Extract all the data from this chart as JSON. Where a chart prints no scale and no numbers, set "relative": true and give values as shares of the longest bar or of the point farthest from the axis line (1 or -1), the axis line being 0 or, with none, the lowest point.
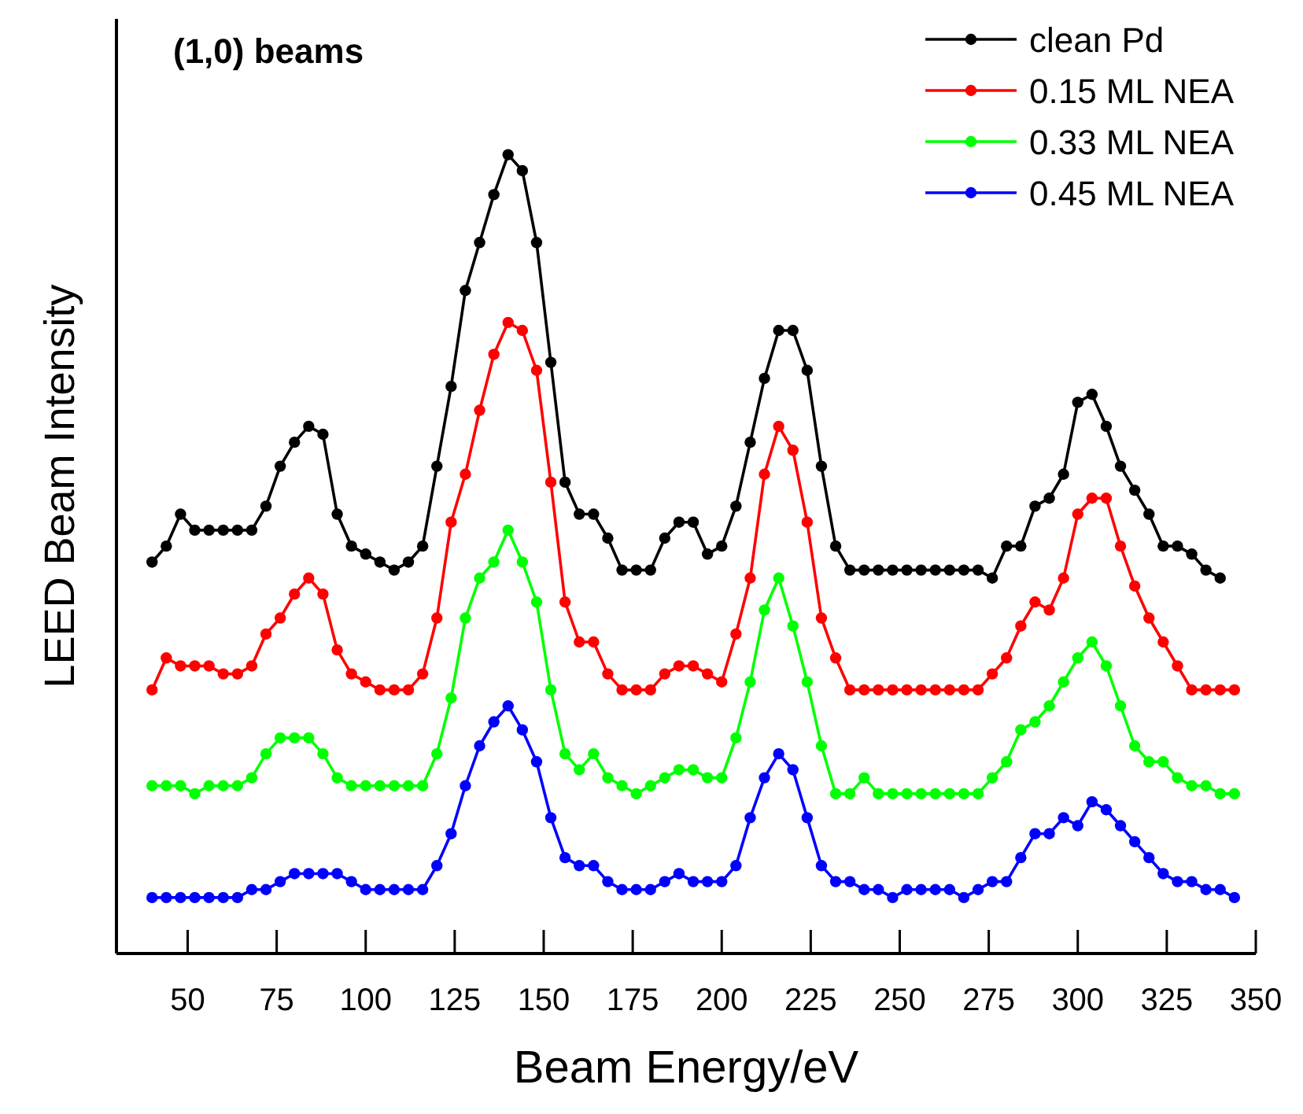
{
  "chart_data": {
    "type": "line",
    "title": "(1,0) beams",
    "xlabel": "Beam Energy/eV",
    "ylabel": "LEED Beam Intensity",
    "relative": true,
    "marker": "circle",
    "legend": "top right",
    "grid": false,
    "x": [
      40,
      44,
      48,
      52,
      56,
      60,
      64,
      68,
      72,
      76,
      80,
      84,
      88,
      92,
      96,
      100,
      104,
      108,
      112,
      116,
      120,
      124,
      128,
      132,
      136,
      140,
      144,
      148,
      152,
      156,
      160,
      164,
      168,
      172,
      176,
      180,
      184,
      188,
      192,
      196,
      200,
      204,
      208,
      212,
      216,
      220,
      224,
      228,
      232,
      236,
      240,
      244,
      248,
      252,
      256,
      260,
      264,
      268,
      272,
      276,
      280,
      284,
      288,
      292,
      296,
      300,
      304,
      308,
      312,
      316,
      320,
      324,
      328,
      332,
      336,
      340,
      344
    ],
    "xlim": [
      30,
      350
    ],
    "xticks": [
      50,
      75,
      100,
      125,
      150,
      175,
      200,
      225,
      250,
      275,
      300,
      325,
      350
    ],
    "series": [
      {
        "name": "clean Pd",
        "color": "#000000",
        "values": [
          0.49,
          0.51,
          0.55,
          0.53,
          0.53,
          0.53,
          0.53,
          0.53,
          0.56,
          0.61,
          0.64,
          0.66,
          0.65,
          0.55,
          0.51,
          0.5,
          0.49,
          0.48,
          0.49,
          0.51,
          0.61,
          0.71,
          0.83,
          0.89,
          0.95,
          1.0,
          0.98,
          0.89,
          0.74,
          0.59,
          0.55,
          0.55,
          0.52,
          0.48,
          0.48,
          0.48,
          0.52,
          0.54,
          0.54,
          0.5,
          0.51,
          0.56,
          0.64,
          0.72,
          0.78,
          0.78,
          0.73,
          0.61,
          0.51,
          0.48,
          0.48,
          0.48,
          0.48,
          0.48,
          0.48,
          0.48,
          0.48,
          0.48,
          0.48,
          0.47,
          0.51,
          0.51,
          0.56,
          0.57,
          0.6,
          0.69,
          0.7,
          0.66,
          0.61,
          0.58,
          0.55,
          0.51,
          0.51,
          0.5,
          0.48,
          0.47,
          null
        ]
      },
      {
        "name": "0.15 ML NEA",
        "color": "#ff0000",
        "values": [
          0.33,
          0.37,
          0.36,
          0.36,
          0.36,
          0.35,
          0.35,
          0.36,
          0.4,
          0.42,
          0.45,
          0.47,
          0.45,
          0.38,
          0.35,
          0.34,
          0.33,
          0.33,
          0.33,
          0.35,
          0.42,
          0.54,
          0.6,
          0.68,
          0.75,
          0.79,
          0.78,
          0.73,
          0.59,
          0.44,
          0.39,
          0.39,
          0.35,
          0.33,
          0.33,
          0.33,
          0.35,
          0.36,
          0.36,
          0.35,
          0.34,
          0.4,
          0.47,
          0.6,
          0.66,
          0.63,
          0.54,
          0.42,
          0.37,
          0.33,
          0.33,
          0.33,
          0.33,
          0.33,
          0.33,
          0.33,
          0.33,
          0.33,
          0.33,
          0.35,
          0.37,
          0.41,
          0.44,
          0.43,
          0.47,
          0.55,
          0.57,
          0.57,
          0.51,
          0.46,
          0.42,
          0.39,
          0.36,
          0.33,
          0.33,
          0.33,
          0.33
        ]
      },
      {
        "name": "0.33 ML NEA",
        "color": "#00ff00",
        "values": [
          0.21,
          0.21,
          0.21,
          0.2,
          0.21,
          0.21,
          0.21,
          0.22,
          0.25,
          0.27,
          0.27,
          0.27,
          0.25,
          0.22,
          0.21,
          0.21,
          0.21,
          0.21,
          0.21,
          0.21,
          0.25,
          0.32,
          0.42,
          0.47,
          0.49,
          0.53,
          0.49,
          0.44,
          0.33,
          0.25,
          0.23,
          0.25,
          0.22,
          0.21,
          0.2,
          0.21,
          0.22,
          0.23,
          0.23,
          0.22,
          0.22,
          0.27,
          0.34,
          0.43,
          0.47,
          0.41,
          0.34,
          0.26,
          0.2,
          0.2,
          0.22,
          0.2,
          0.2,
          0.2,
          0.2,
          0.2,
          0.2,
          0.2,
          0.2,
          0.22,
          0.24,
          0.28,
          0.29,
          0.31,
          0.34,
          0.37,
          0.39,
          0.36,
          0.31,
          0.26,
          0.24,
          0.24,
          0.22,
          0.21,
          0.21,
          0.2,
          0.2
        ]
      },
      {
        "name": "0.45 ML NEA",
        "color": "#0000ff",
        "values": [
          0.07,
          0.07,
          0.07,
          0.07,
          0.07,
          0.07,
          0.07,
          0.08,
          0.08,
          0.09,
          0.1,
          0.1,
          0.1,
          0.1,
          0.09,
          0.08,
          0.08,
          0.08,
          0.08,
          0.08,
          0.11,
          0.15,
          0.21,
          0.26,
          0.29,
          0.31,
          0.28,
          0.24,
          0.17,
          0.12,
          0.11,
          0.11,
          0.09,
          0.08,
          0.08,
          0.08,
          0.09,
          0.1,
          0.09,
          0.09,
          0.09,
          0.11,
          0.17,
          0.22,
          0.25,
          0.23,
          0.17,
          0.11,
          0.09,
          0.09,
          0.08,
          0.08,
          0.07,
          0.08,
          0.08,
          0.08,
          0.08,
          0.07,
          0.08,
          0.09,
          0.09,
          0.12,
          0.15,
          0.15,
          0.17,
          0.16,
          0.19,
          0.18,
          0.16,
          0.14,
          0.12,
          0.1,
          0.09,
          0.09,
          0.08,
          0.08,
          0.07
        ]
      }
    ]
  }
}
